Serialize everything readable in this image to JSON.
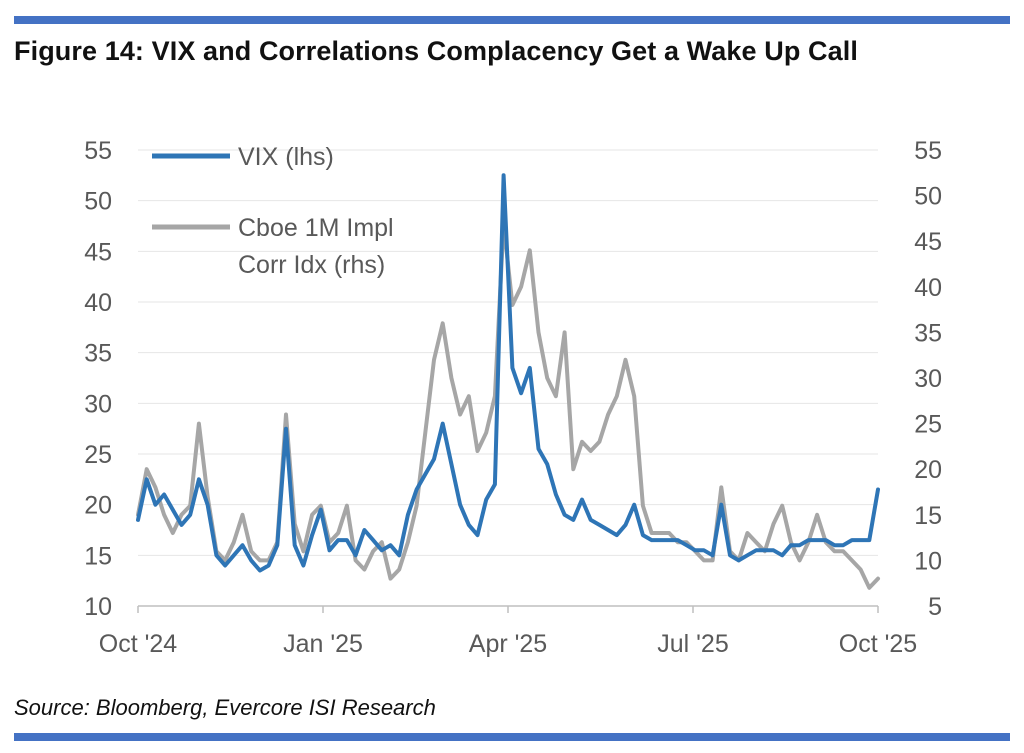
{
  "figure": {
    "title": "Figure 14: VIX and Correlations Complacency Get a Wake Up Call",
    "source": "Source: Bloomberg, Evercore ISI Research",
    "accent_color": "#4472C4"
  },
  "chart_data": {
    "type": "line",
    "title": "Figure 14: VIX and Correlations Complacency Get a Wake Up Call",
    "xlabel": "",
    "ylabel": "",
    "x_ticks": [
      "Oct '24",
      "Jan '25",
      "Apr '25",
      "Jul '25",
      "Oct '25"
    ],
    "y_left": {
      "range": [
        10,
        55
      ],
      "ticks": [
        "55",
        "50",
        "45",
        "40",
        "35",
        "30",
        "25",
        "20",
        "15",
        "10"
      ]
    },
    "y_right": {
      "range": [
        5,
        55
      ],
      "ticks": [
        "55",
        "50",
        "45",
        "40",
        "35",
        "30",
        "25",
        "20",
        "15",
        "10",
        "5"
      ]
    },
    "grid": true,
    "legend": "top-left",
    "series": [
      {
        "name": "VIX (lhs)",
        "axis": "left",
        "color": "#2E75B6",
        "x": [
          0,
          3,
          6,
          9,
          12,
          15,
          18,
          21,
          24,
          27,
          30,
          33,
          36,
          39,
          42,
          45,
          48,
          51,
          54,
          57,
          60,
          63,
          66,
          69,
          72,
          75,
          78,
          81,
          84,
          87,
          90,
          93,
          96,
          99,
          102,
          105,
          108,
          111,
          114,
          117,
          120,
          123,
          126,
          129,
          132,
          135,
          138,
          141,
          144,
          147,
          150,
          153,
          156,
          159,
          162,
          165,
          168,
          171,
          174,
          177,
          180,
          183,
          186,
          189,
          192,
          195,
          198,
          201,
          204,
          207,
          210,
          213,
          216,
          219,
          222,
          225,
          228,
          231,
          234,
          237,
          240,
          243,
          246,
          249,
          252,
          255
        ],
        "y": [
          18.5,
          22.5,
          20,
          21,
          19.5,
          18,
          19,
          22.5,
          20,
          15,
          14,
          15,
          16,
          14.5,
          13.5,
          14,
          16,
          27.5,
          16,
          14,
          17,
          19.5,
          15.5,
          16.5,
          16.5,
          15,
          17.5,
          16.5,
          15.5,
          16,
          15,
          19,
          21.5,
          23,
          24.5,
          28,
          24,
          20,
          18,
          17,
          20.5,
          22,
          52.5,
          33.5,
          31,
          33.5,
          25.5,
          24,
          21,
          19,
          18.5,
          20.5,
          18.5,
          18,
          17.5,
          17,
          18,
          20,
          17,
          16.5,
          16.5,
          16.5,
          16.5,
          16,
          15.5,
          15.5,
          15,
          20,
          15,
          14.5,
          15,
          15.5,
          15.5,
          15.5,
          15,
          16,
          16,
          16.5,
          16.5,
          16.5,
          16,
          16,
          16.5,
          16.5,
          16.5,
          21.5
        ]
      },
      {
        "name": "Cboe 1M Impl Corr Idx (rhs)",
        "axis": "right",
        "color": "#A6A6A6",
        "x": [
          0,
          3,
          6,
          9,
          12,
          15,
          18,
          21,
          24,
          27,
          30,
          33,
          36,
          39,
          42,
          45,
          48,
          51,
          54,
          57,
          60,
          63,
          66,
          69,
          72,
          75,
          78,
          81,
          84,
          87,
          90,
          93,
          96,
          99,
          102,
          105,
          108,
          111,
          114,
          117,
          120,
          123,
          126,
          129,
          132,
          135,
          138,
          141,
          144,
          147,
          150,
          153,
          156,
          159,
          162,
          165,
          168,
          171,
          174,
          177,
          180,
          183,
          186,
          189,
          192,
          195,
          198,
          201,
          204,
          207,
          210,
          213,
          216,
          219,
          222,
          225,
          228,
          231,
          234,
          237,
          240,
          243,
          246,
          249,
          252,
          255
        ],
        "y": [
          15,
          20,
          18,
          15,
          13,
          15,
          16,
          25,
          17,
          11,
          10,
          12,
          15,
          11,
          10,
          10,
          12,
          26,
          14,
          11,
          15,
          16,
          12,
          13,
          16,
          10,
          9,
          11,
          12,
          8,
          9,
          12,
          16,
          24,
          32,
          36,
          30,
          26,
          28,
          22,
          24,
          28,
          47,
          38,
          40,
          44,
          35,
          30,
          28,
          35,
          20,
          23,
          22,
          23,
          26,
          28,
          32,
          28,
          16,
          13,
          13,
          13,
          12,
          12,
          11,
          10,
          10,
          18,
          11,
          10,
          13,
          12,
          11,
          14,
          16,
          12,
          10,
          12,
          15,
          12,
          11,
          11,
          10,
          9,
          7,
          8
        ]
      }
    ]
  }
}
